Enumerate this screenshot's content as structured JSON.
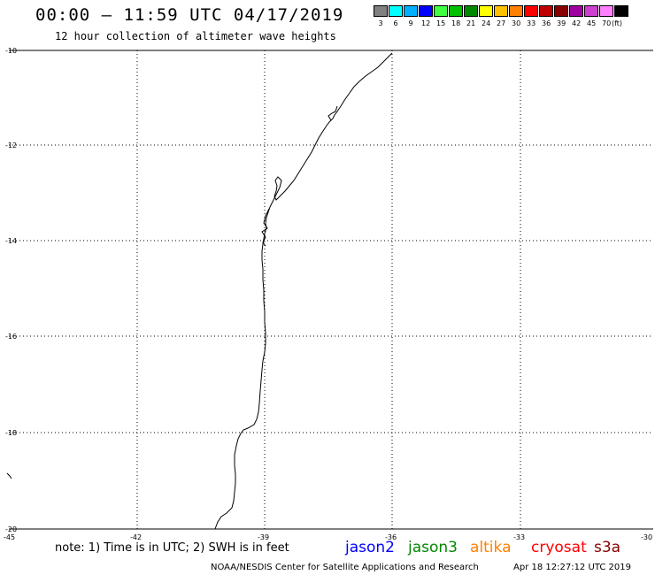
{
  "header": {
    "title": "00:00 – 11:59 UTC 04/17/2019",
    "subtitle": "12 hour collection of altimeter wave heights"
  },
  "color_scale": {
    "labels": [
      "3",
      "6",
      "9",
      "12",
      "15",
      "18",
      "21",
      "24",
      "27",
      "30",
      "33",
      "36",
      "39",
      "42",
      "45",
      "70",
      "(ft)"
    ],
    "colors": [
      "#808080",
      "#00ffff",
      "#00b0ff",
      "#0000ff",
      "#40ff40",
      "#00c000",
      "#008800",
      "#ffff00",
      "#ffc000",
      "#ff8000",
      "#ff0000",
      "#c00000",
      "#880000",
      "#a000a0",
      "#d040d0",
      "#ff80ff",
      "#000000"
    ]
  },
  "map": {
    "lat_labels": [
      "-10",
      "-12",
      "-14",
      "-16",
      "-18",
      "-20"
    ],
    "lon_labels": [
      "-45",
      "-42",
      "-39",
      "-36",
      "-33",
      "-30"
    ]
  },
  "footer": {
    "note": "note: 1) Time is in UTC; 2) SWH is in feet",
    "satellites": [
      {
        "name": "jason2",
        "color": "#0000ff"
      },
      {
        "name": "jason3",
        "color": "#008800"
      },
      {
        "name": "altika",
        "color": "#ff8000"
      },
      {
        "name": "cryosat",
        "color": "#ff0000"
      },
      {
        "name": "s3a",
        "color": "#880000"
      }
    ],
    "credit": "NOAA/NESDIS Center for Satellite Applications and Research",
    "timestamp": "Apr 18 12:27:12 UTC 2019"
  }
}
